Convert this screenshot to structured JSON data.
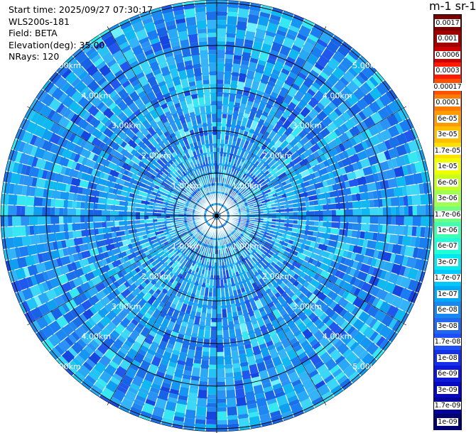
{
  "header": {
    "start_time": "Start time: 2025/09/27 07:30:17",
    "instrument": "WLS200s-181",
    "field": "Field: BETA",
    "elevation": "Elevation(deg): 35.00",
    "nrays": "NRays: 120"
  },
  "colorbar": {
    "title": "m-1 sr-1",
    "labels": [
      "0.0017",
      "0.001",
      "0.0006",
      "0.0003",
      "0.00017",
      "0.0001",
      "6e-05",
      "3e-05",
      "1.7e-05",
      "1e-05",
      "6e-06",
      "3e-06",
      "1.7e-06",
      "1e-06",
      "6e-07",
      "3e-07",
      "1.7e-07",
      "1e-07",
      "6e-08",
      "3e-08",
      "1.7e-08",
      "1e-08",
      "6e-09",
      "3e-09",
      "1.7e-09",
      "1e-09"
    ],
    "colors": [
      "#7a0000",
      "#a00000",
      "#cc0000",
      "#ff1a00",
      "#ff5000",
      "#ff7a00",
      "#ff9a00",
      "#ffbe00",
      "#ffe000",
      "#f0ff00",
      "#c8ff20",
      "#a0ff50",
      "#70ff80",
      "#40ffb0",
      "#20ffd8",
      "#00e8f0",
      "#00c8f8",
      "#00a8f8",
      "#1888f0",
      "#2068f0",
      "#1f50f5",
      "#1530e8",
      "#0e18d8",
      "#0808c0",
      "#03039a",
      "#000070"
    ]
  },
  "chart_data": {
    "type": "heatmap",
    "projection": "polar PPI (range rings)",
    "range_unit": "km",
    "range_max": 5.0,
    "range_rings": [
      1.0,
      2.0,
      3.0,
      4.0,
      5.0
    ],
    "range_ring_labels": [
      "1.00km",
      "2.00km",
      "3.00km",
      "4.00km",
      "5.00km"
    ],
    "ring_label_bearings_deg": [
      45,
      135,
      225,
      315
    ],
    "n_rays": 120,
    "elevation_deg": 35.0,
    "field": "BETA",
    "dominant_range": [
      "3e-08",
      "1e-07"
    ],
    "colorscale": "log"
  }
}
